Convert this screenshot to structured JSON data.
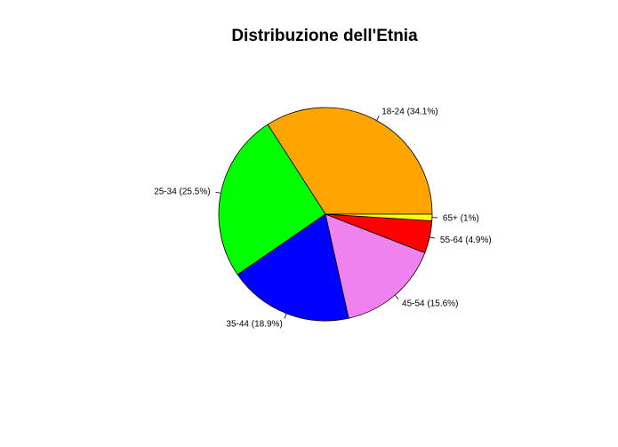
{
  "chart_data": {
    "type": "pie",
    "title": "Distribuzione dell'Etnia",
    "direction": "counterclockwise",
    "start": "3 o'clock",
    "slices": [
      {
        "label": "18-24 (34.1%)",
        "value": 34.1,
        "color": "#FFA500"
      },
      {
        "label": "25-34 (25.5%)",
        "value": 25.5,
        "color": "#00FF00"
      },
      {
        "label": "35-44 (18.9%)",
        "value": 18.9,
        "color": "#0000FF"
      },
      {
        "label": "45-54 (15.6%)",
        "value": 15.6,
        "color": "#EE82EE"
      },
      {
        "label": "55-64 (4.9%)",
        "value": 4.9,
        "color": "#FF0000"
      },
      {
        "label": "65+ (1%)",
        "value": 1.0,
        "color": "#FFFF00"
      }
    ],
    "legend": "none"
  }
}
